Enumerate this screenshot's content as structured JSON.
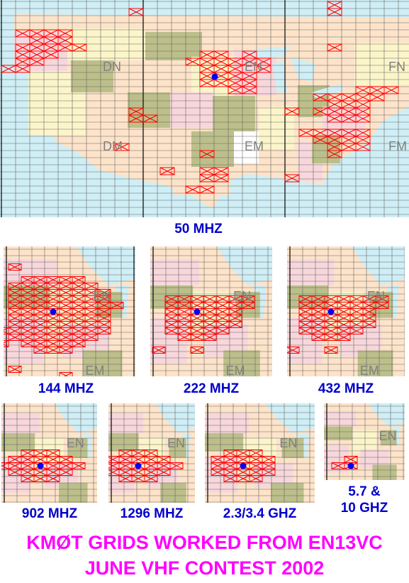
{
  "maps": {
    "main": {
      "band": "50 MHZ",
      "grid_labels": [
        "DN",
        "EN",
        "FN",
        "DM",
        "EM",
        "FM"
      ]
    },
    "b144": {
      "band": "144 MHZ",
      "grid_labels": [
        "EN",
        "EM"
      ]
    },
    "b222": {
      "band": "222 MHZ",
      "grid_labels": [
        "EN",
        "EM"
      ]
    },
    "b432": {
      "band": "432 MHZ",
      "grid_labels": [
        "EN",
        "EM"
      ]
    },
    "b902": {
      "band": "902 MHZ",
      "grid_labels": [
        "EN"
      ]
    },
    "b1296": {
      "band": "1296 MHZ",
      "grid_labels": [
        "EN"
      ]
    },
    "b2g": {
      "band": "2.3/3.4 GHZ",
      "grid_labels": [
        "EN"
      ]
    },
    "b5g": {
      "band_line1": "5.7 &",
      "band_line2": "10 GHZ",
      "grid_labels": [
        "EN"
      ]
    }
  },
  "footer": {
    "line1": "KMØT GRIDS WORKED FROM EN13VC",
    "line2": "JUNE VHF CONTEST 2002"
  },
  "colors": {
    "water": "#cfeef5",
    "state_pink": "#f7d7dc",
    "state_peach": "#fde3c9",
    "state_yellow": "#fbf5c9",
    "state_olive": "#bcbf8a",
    "state_gray": "#ffffff",
    "grid_line": "#555555",
    "worked_square": "#ff0000",
    "home_marker": "#0000ff",
    "band_label": "#0000cc",
    "title": "#ff00ff"
  }
}
